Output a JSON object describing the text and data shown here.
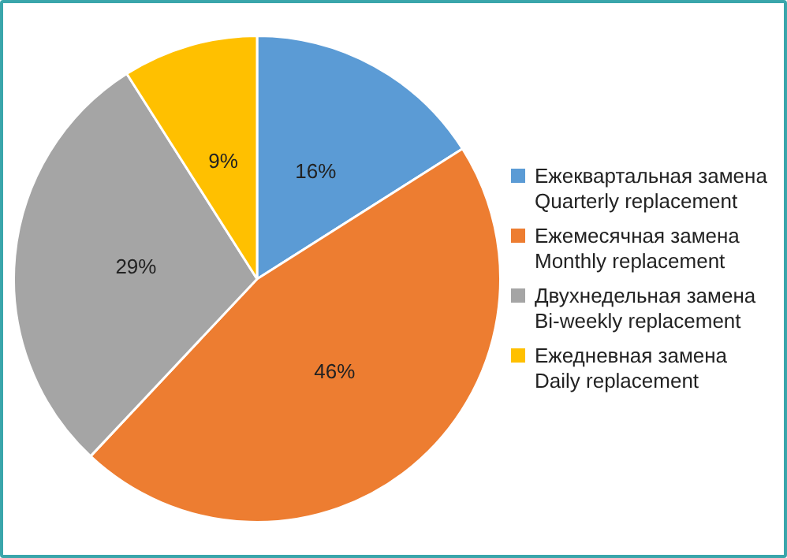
{
  "chart_data": {
    "type": "pie",
    "categories": [
      "Ежеквартальная замена\nQuarterly replacement",
      "Ежемесячная замена\nMonthly replacement",
      "Двухнедельная замена\nBi-weekly replacement",
      "Ежедневная замена\nDaily replacement"
    ],
    "values": [
      16,
      46,
      29,
      9
    ],
    "colors": [
      "#5b9bd5",
      "#ed7d31",
      "#a5a5a5",
      "#ffc000"
    ],
    "value_labels": [
      "16%",
      "46%",
      "29%",
      "9%"
    ],
    "legend": "right"
  }
}
